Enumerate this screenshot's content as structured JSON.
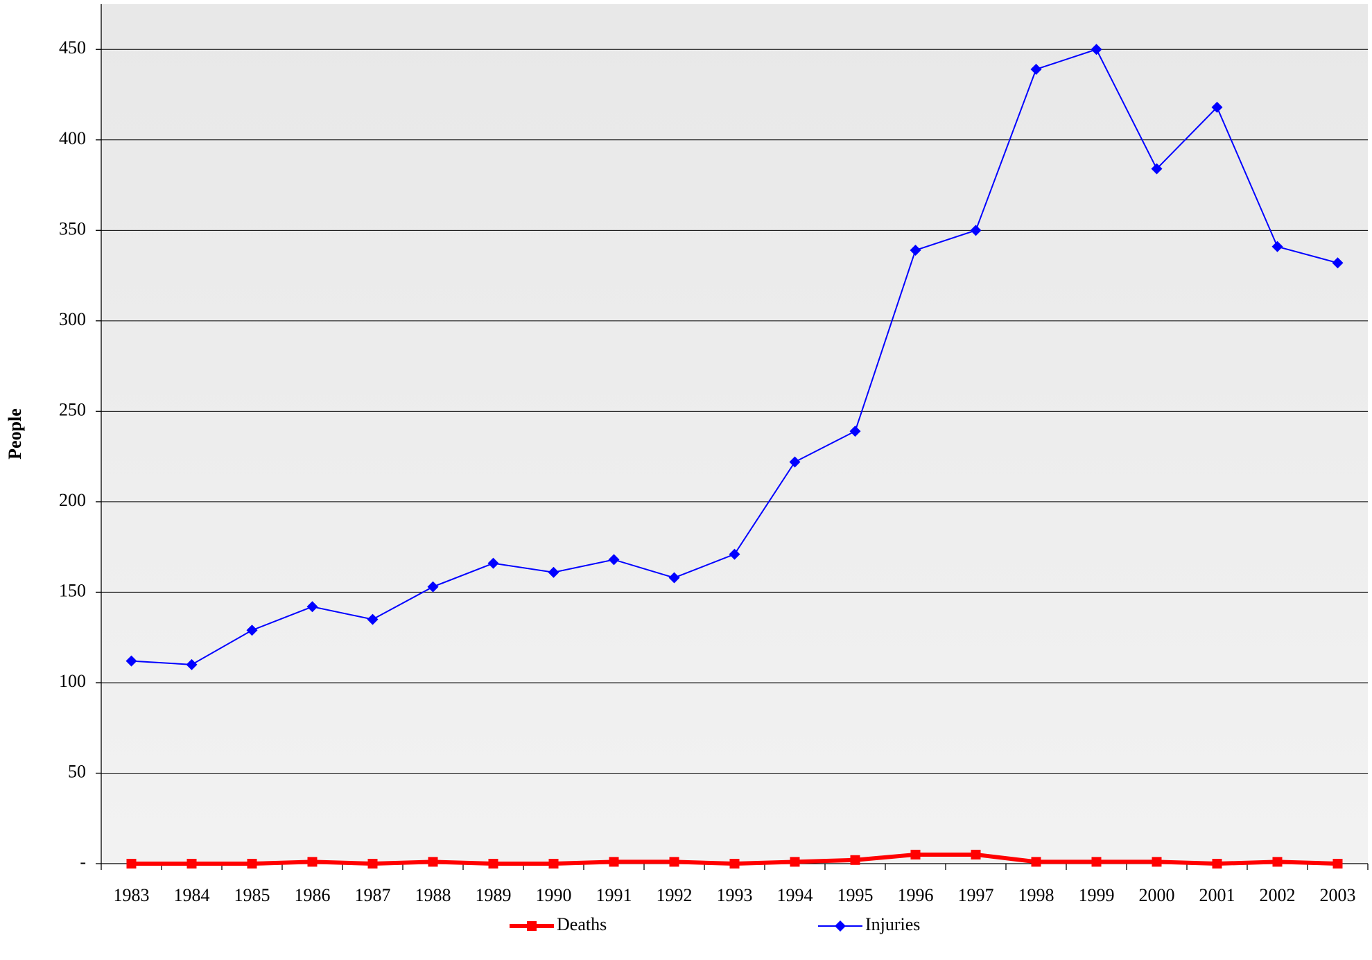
{
  "chart_data": {
    "type": "line",
    "y_label": "People",
    "categories": [
      "1983",
      "1984",
      "1985",
      "1986",
      "1987",
      "1988",
      "1989",
      "1990",
      "1991",
      "1992",
      "1993",
      "1994",
      "1995",
      "1996",
      "1997",
      "1998",
      "1999",
      "2000",
      "2001",
      "2002",
      "2003"
    ],
    "series": [
      {
        "name": "Deaths",
        "color": "#ff0000",
        "marker": "square",
        "values": [
          0,
          0,
          0,
          1,
          0,
          1,
          0,
          0,
          1,
          1,
          0,
          1,
          2,
          5,
          5,
          1,
          1,
          1,
          0,
          1,
          0
        ]
      },
      {
        "name": "Injuries",
        "color": "#0000ff",
        "marker": "diamond",
        "values": [
          112,
          110,
          129,
          142,
          135,
          153,
          166,
          161,
          168,
          158,
          171,
          222,
          239,
          339,
          350,
          439,
          450,
          384,
          418,
          341,
          332
        ]
      }
    ],
    "ylim": [
      0,
      475
    ],
    "yticks": [
      {
        "value": 0,
        "label": "-"
      },
      50,
      100,
      150,
      200,
      250,
      300,
      350,
      400,
      450
    ],
    "grid": true,
    "legend": "bottom"
  }
}
